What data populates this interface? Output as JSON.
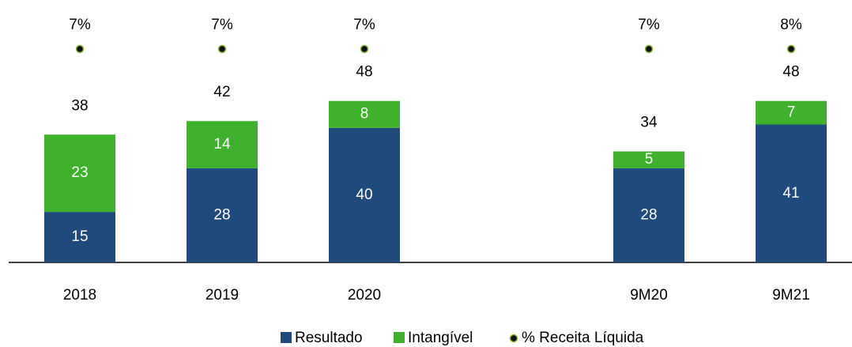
{
  "chart_data": {
    "type": "stacked-bar",
    "categories": [
      "2018",
      "2019",
      "2020",
      null,
      "9M20",
      "9M21"
    ],
    "series": [
      {
        "name": "Resultado",
        "color": "#214a7c",
        "values": [
          15,
          28,
          40,
          null,
          28,
          41
        ]
      },
      {
        "name": "Intangível",
        "color": "#3fb12d",
        "values": [
          23,
          14,
          8,
          null,
          5,
          7
        ]
      }
    ],
    "totals": [
      38,
      42,
      48,
      null,
      34,
      48
    ],
    "ratio": {
      "name": "% Receita Líquida",
      "color": "#111111",
      "values": [
        7,
        7,
        7,
        null,
        7,
        8
      ],
      "value_labels": [
        "7%",
        "7%",
        "7%",
        null,
        "7%",
        "8%"
      ]
    },
    "ylim": [
      0,
      78
    ]
  }
}
